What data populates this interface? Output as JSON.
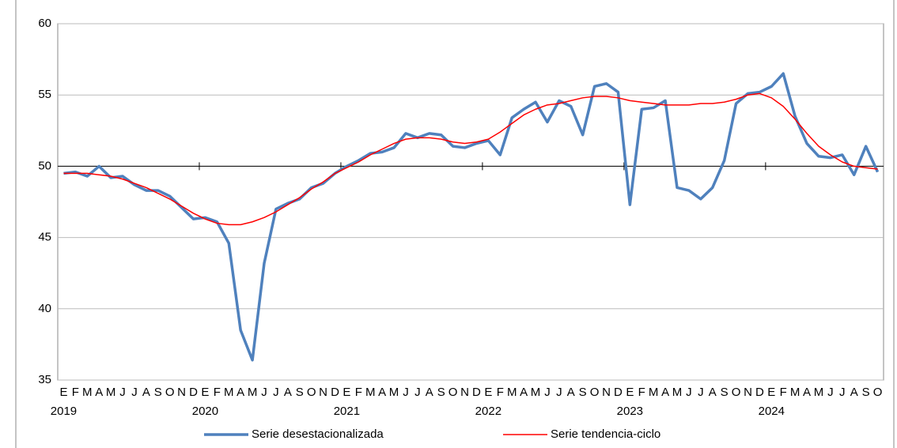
{
  "chart_data": {
    "type": "line",
    "categories": [
      "E",
      "F",
      "M",
      "A",
      "M",
      "J",
      "J",
      "A",
      "S",
      "O",
      "N",
      "D",
      "E",
      "F",
      "M",
      "A",
      "M",
      "J",
      "J",
      "A",
      "S",
      "O",
      "N",
      "D",
      "E",
      "F",
      "M",
      "A",
      "M",
      "J",
      "J",
      "A",
      "S",
      "O",
      "N",
      "D",
      "E",
      "F",
      "M",
      "A",
      "M",
      "J",
      "J",
      "A",
      "S",
      "O",
      "N",
      "D",
      "E",
      "F",
      "M",
      "A",
      "M",
      "J",
      "J",
      "A",
      "S",
      "O",
      "N",
      "D",
      "E",
      "F",
      "M",
      "A",
      "M",
      "J",
      "J",
      "A",
      "S",
      "O"
    ],
    "year_labels": [
      "2019",
      "2020",
      "2021",
      "2022",
      "2023",
      "2024"
    ],
    "series": [
      {
        "name": "Serie desestacionalizada",
        "color": "#4f81bd",
        "width": 3.5,
        "values": [
          49.5,
          49.6,
          49.3,
          50.0,
          49.2,
          49.3,
          48.7,
          48.3,
          48.3,
          47.9,
          47.1,
          46.3,
          46.4,
          46.1,
          44.6,
          38.5,
          36.4,
          43.2,
          47.0,
          47.4,
          47.7,
          48.5,
          48.8,
          49.5,
          50.0,
          50.4,
          50.9,
          51.0,
          51.3,
          52.3,
          52.0,
          52.3,
          52.2,
          51.4,
          51.3,
          51.6,
          51.8,
          50.8,
          53.4,
          54.0,
          54.5,
          53.1,
          54.6,
          54.2,
          52.2,
          55.6,
          55.8,
          55.2,
          47.3,
          54.0,
          54.1,
          54.6,
          48.5,
          48.3,
          47.7,
          48.5,
          50.4,
          54.4,
          55.1,
          55.2,
          55.6,
          56.5,
          53.5,
          51.6,
          50.7,
          50.6,
          50.8,
          49.4,
          51.4,
          49.6
        ]
      },
      {
        "name": "Serie tendencia-ciclo",
        "color": "#ff0000",
        "width": 1.5,
        "values": [
          49.5,
          49.5,
          49.5,
          49.4,
          49.3,
          49.1,
          48.8,
          48.5,
          48.1,
          47.7,
          47.2,
          46.7,
          46.3,
          46.0,
          45.9,
          45.9,
          46.1,
          46.4,
          46.8,
          47.3,
          47.8,
          48.4,
          48.9,
          49.5,
          49.9,
          50.3,
          50.8,
          51.2,
          51.6,
          51.9,
          52.0,
          52.0,
          51.9,
          51.7,
          51.6,
          51.7,
          51.9,
          52.4,
          53.0,
          53.6,
          54.0,
          54.3,
          54.4,
          54.6,
          54.8,
          54.9,
          54.9,
          54.8,
          54.6,
          54.5,
          54.4,
          54.3,
          54.3,
          54.3,
          54.4,
          54.4,
          54.5,
          54.7,
          55.0,
          55.1,
          54.8,
          54.2,
          53.3,
          52.3,
          51.4,
          50.8,
          50.3,
          50.0,
          49.9,
          49.8
        ]
      }
    ],
    "ylim": [
      35,
      60
    ],
    "yticks": [
      35,
      40,
      45,
      50,
      55,
      60
    ],
    "grid": true,
    "x_axis_at": 50,
    "legend": "bottom"
  }
}
